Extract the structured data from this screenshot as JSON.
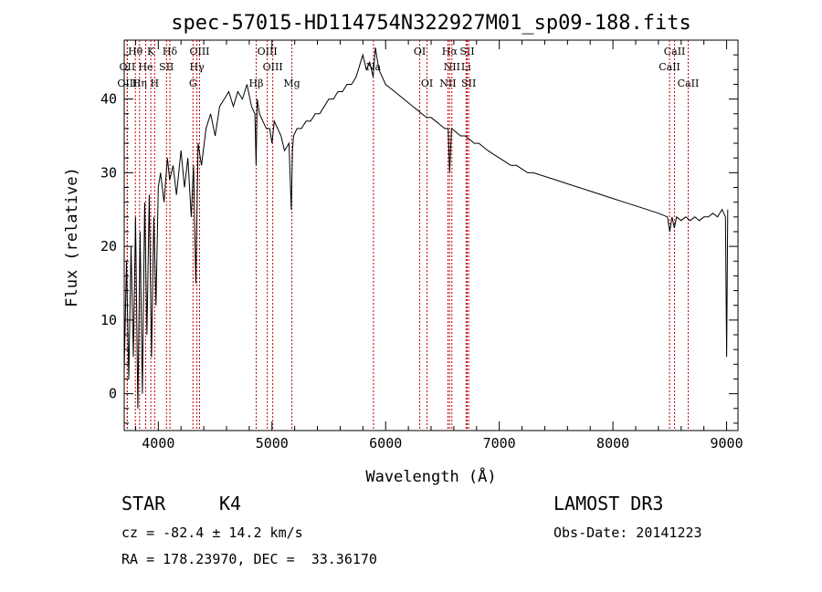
{
  "chart_data": {
    "type": "line",
    "title": "spec-57015-HD114754N322927M01_sp09-188.fits",
    "xlabel": "Wavelength (Å)",
    "ylabel": "Flux (relative)",
    "xlim": [
      3700,
      9100
    ],
    "ylim": [
      -5,
      48
    ],
    "xticks": [
      4000,
      5000,
      6000,
      7000,
      8000,
      9000
    ],
    "yticks": [
      0,
      10,
      20,
      30,
      40
    ],
    "grid": false,
    "series": [
      {
        "x": [
          3700,
          3720,
          3740,
          3760,
          3780,
          3800,
          3820,
          3840,
          3860,
          3880,
          3900,
          3920,
          3940,
          3960,
          3980,
          4000,
          4020,
          4050,
          4080,
          4100,
          4130,
          4160,
          4200,
          4230,
          4260,
          4290,
          4310,
          4330,
          4350,
          4380,
          4420,
          4460,
          4500,
          4540,
          4580,
          4620,
          4660,
          4700,
          4740,
          4780,
          4820,
          4850,
          4860,
          4870,
          4890,
          4920,
          4950,
          4980,
          5000,
          5020,
          5050,
          5080,
          5110,
          5150,
          5170,
          5180,
          5190,
          5220,
          5260,
          5300,
          5340,
          5380,
          5420,
          5460,
          5500,
          5540,
          5580,
          5620,
          5660,
          5700,
          5740,
          5780,
          5800,
          5830,
          5860,
          5890,
          5910,
          5940,
          5970,
          6000,
          6040,
          6080,
          6120,
          6160,
          6200,
          6240,
          6280,
          6320,
          6360,
          6400,
          6440,
          6480,
          6520,
          6550,
          6563,
          6580,
          6620,
          6660,
          6700,
          6740,
          6780,
          6820,
          6860,
          6900,
          6950,
          7000,
          7050,
          7100,
          7150,
          7200,
          7250,
          7300,
          7400,
          7500,
          7600,
          7700,
          7800,
          7900,
          8000,
          8100,
          8200,
          8300,
          8400,
          8480,
          8500,
          8520,
          8540,
          8560,
          8600,
          8640,
          8680,
          8720,
          8760,
          8800,
          8840,
          8880,
          8920,
          8960,
          8990,
          9000,
          9010
        ],
        "y": [
          3,
          18,
          2,
          20,
          5,
          24,
          -2,
          22,
          0,
          26,
          8,
          27,
          5,
          24,
          12,
          28,
          30,
          26,
          32,
          29,
          31,
          27,
          33,
          28,
          32,
          24,
          31,
          15,
          34,
          31,
          36,
          38,
          35,
          39,
          40,
          41,
          39,
          41,
          40,
          42,
          39,
          38,
          31,
          40,
          38,
          37,
          36,
          36,
          34,
          37,
          36,
          35,
          33,
          34,
          25,
          33,
          35,
          36,
          36,
          37,
          37,
          38,
          38,
          39,
          40,
          40,
          41,
          41,
          42,
          42,
          43,
          45,
          46,
          44,
          45,
          43,
          47,
          44,
          43,
          42,
          41.5,
          41,
          40.5,
          40,
          39.5,
          39,
          38.5,
          38,
          37.5,
          37.5,
          37,
          36.5,
          36,
          36,
          30,
          36,
          35.5,
          35,
          35,
          34.5,
          34,
          34,
          33.5,
          33,
          32.5,
          32,
          31.5,
          31,
          31,
          30.5,
          30,
          30,
          29.5,
          29,
          28.5,
          28,
          27.5,
          27,
          26.5,
          26,
          25.5,
          25,
          24.5,
          24,
          22,
          24,
          22.5,
          24,
          23.5,
          24,
          23.5,
          24,
          23.5,
          24,
          24,
          24.5,
          24,
          25,
          24,
          5,
          25
        ]
      }
    ],
    "lines": [
      {
        "label": "Hθ",
        "x": 3798,
        "row": 0,
        "color": "#c00000"
      },
      {
        "label": "K",
        "x": 3934,
        "row": 0,
        "color": "#c00000"
      },
      {
        "label": "Hδ",
        "x": 4102,
        "row": 0,
        "color": "#c00000"
      },
      {
        "label": "OIII",
        "x": 4363,
        "row": 0,
        "color": "#c00000"
      },
      {
        "label": "OIII",
        "x": 4959,
        "row": 0,
        "color": "#c00000"
      },
      {
        "label": "OI",
        "x": 6300,
        "row": 0,
        "color": "#c00000"
      },
      {
        "label": "Hα",
        "x": 6563,
        "row": 0,
        "color": "#c00000"
      },
      {
        "label": "SII",
        "x": 6717,
        "row": 0,
        "color": "#c00000"
      },
      {
        "label": "CaII",
        "x": 8542,
        "row": 0,
        "color": "#c00000"
      },
      {
        "label": "OII",
        "x": 3727,
        "row": 1,
        "color": "#c00000"
      },
      {
        "label": "He",
        "x": 3889,
        "row": 1,
        "color": "#c00000"
      },
      {
        "label": "SII",
        "x": 4072,
        "row": 1,
        "color": "#c00000"
      },
      {
        "label": "Hγ",
        "x": 4340,
        "row": 1,
        "color": "#c00000"
      },
      {
        "label": "OIII",
        "x": 5007,
        "row": 1,
        "color": "#c00000"
      },
      {
        "label": "Na",
        "x": 5893,
        "row": 1,
        "color": "#c00000"
      },
      {
        "label": "NII",
        "x": 6583,
        "row": 1,
        "color": "#c00000"
      },
      {
        "label": "Li",
        "x": 6708,
        "row": 1,
        "color": "#c00000"
      },
      {
        "label": "CaII",
        "x": 8498,
        "row": 1,
        "color": "#c00000"
      },
      {
        "label": "OIII",
        "x": 3727,
        "row": 2,
        "color": "#c00000"
      },
      {
        "label": "Hη",
        "x": 3835,
        "row": 2,
        "color": "#c00000"
      },
      {
        "label": "H",
        "x": 3968,
        "row": 2,
        "color": "#c00000"
      },
      {
        "label": "G",
        "x": 4305,
        "row": 2,
        "color": "#c00000"
      },
      {
        "label": "Hβ",
        "x": 4861,
        "row": 2,
        "color": "#c00000"
      },
      {
        "label": "Mg",
        "x": 5175,
        "row": 2,
        "color": "#c00000"
      },
      {
        "label": "OI",
        "x": 6364,
        "row": 2,
        "color": "#c00000"
      },
      {
        "label": "NII",
        "x": 6548,
        "row": 2,
        "color": "#c00000"
      },
      {
        "label": "SII",
        "x": 6731,
        "row": 2,
        "color": "#c00000"
      },
      {
        "label": "CaII",
        "x": 8662,
        "row": 2,
        "color": "#c00000"
      }
    ]
  },
  "info": {
    "class": "STAR",
    "subclass": "K4",
    "cz": "cz = -82.4 ± 14.2 km/s",
    "radec": "RA = 178.23970, DEC =  33.36170",
    "survey": "LAMOST DR3",
    "obsdate": "Obs-Date: 20141223"
  }
}
